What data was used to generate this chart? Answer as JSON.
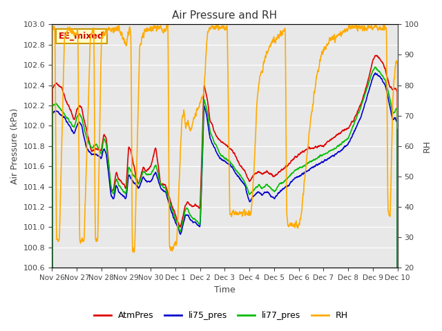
{
  "title": "Air Pressure and RH",
  "xlabel": "Time",
  "ylabel_left": "Air Pressure (kPa)",
  "ylabel_right": "RH",
  "ylim_left": [
    100.6,
    103.0
  ],
  "ylim_right": [
    20,
    100
  ],
  "yticks_left": [
    100.6,
    100.8,
    101.0,
    101.2,
    101.4,
    101.6,
    101.8,
    102.0,
    102.2,
    102.4,
    102.6,
    102.8,
    103.0
  ],
  "yticks_right": [
    20,
    30,
    40,
    50,
    60,
    70,
    80,
    90,
    100
  ],
  "bg_color": "#ffffff",
  "plot_bg_color": "#e8e8e8",
  "annotation_text": "EE_mixed",
  "annotation_bg": "#ffffcc",
  "annotation_border": "#cc9900",
  "annotation_text_color": "#cc0000",
  "colors": {
    "AtmPres": "#dd0000",
    "li75_pres": "#0000cc",
    "li77_pres": "#00bb00",
    "RH": "#ffaa00"
  },
  "legend_labels": [
    "AtmPres",
    "li75_pres",
    "li77_pres",
    "RH"
  ],
  "xtick_labels": [
    "Nov 26",
    "Nov 27",
    "Nov 28",
    "Nov 29",
    "Nov 30",
    "Dec 1",
    "Dec 2",
    "Dec 3",
    "Dec 4",
    "Dec 5",
    "Dec 6",
    "Dec 7",
    "Dec 8",
    "Dec 9",
    "Dec 10"
  ],
  "grid_color": "#cccccc",
  "tick_color": "#444444",
  "linewidth": 1.2
}
